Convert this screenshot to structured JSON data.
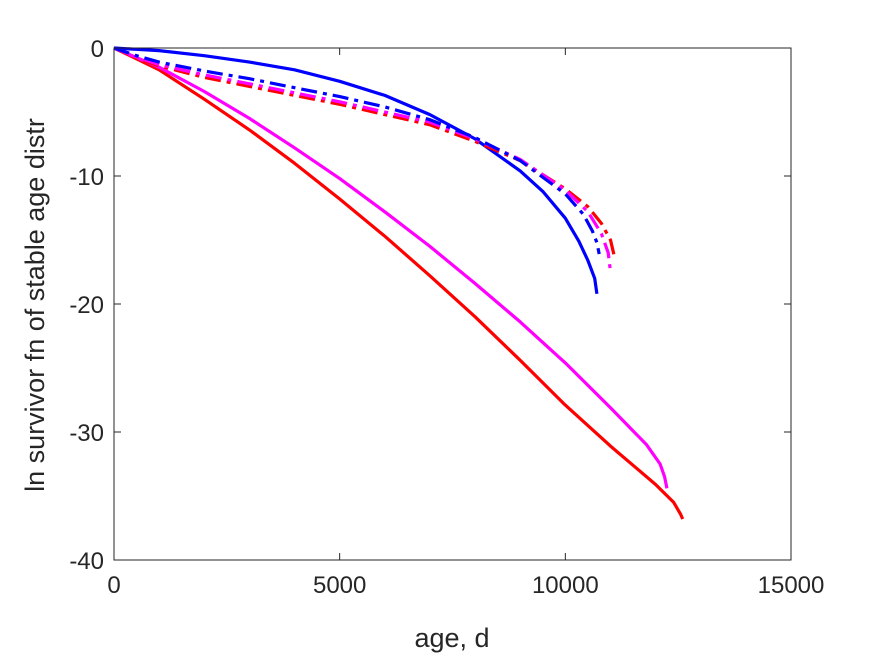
{
  "chart_data": {
    "type": "line",
    "title": "",
    "xlabel": "age, d",
    "ylabel": "ln survivor fn of stable age distr",
    "xlim": [
      0,
      15000
    ],
    "ylim": [
      -40,
      0
    ],
    "xticks": [
      0,
      5000,
      10000,
      15000
    ],
    "yticks": [
      0,
      -10,
      -20,
      -30,
      -40
    ],
    "xtick_labels": [
      "0",
      "5000",
      "10000",
      "15000"
    ],
    "ytick_labels": [
      "0",
      "-10",
      "-20",
      "-30",
      "-40"
    ],
    "grid": false,
    "legend": "none",
    "series": [
      {
        "color": "#ff0000",
        "style": "solid",
        "x": [
          0,
          1000,
          2000,
          3000,
          4000,
          5000,
          6000,
          7000,
          8000,
          9000,
          10000,
          11000,
          12000,
          12200,
          12400,
          12550,
          12600
        ],
        "y": [
          0,
          -1.7,
          -4.0,
          -6.4,
          -9.0,
          -11.8,
          -14.7,
          -17.8,
          -21.0,
          -24.4,
          -27.9,
          -31.1,
          -34.1,
          -34.8,
          -35.5,
          -36.4,
          -36.8
        ]
      },
      {
        "color": "#ff00ff",
        "style": "solid",
        "x": [
          0,
          1000,
          2000,
          3000,
          4000,
          5000,
          6000,
          7000,
          8000,
          9000,
          10000,
          11000,
          11800,
          12100,
          12200,
          12250
        ],
        "y": [
          0,
          -1.5,
          -3.4,
          -5.5,
          -7.8,
          -10.2,
          -12.8,
          -15.5,
          -18.4,
          -21.4,
          -24.6,
          -28.1,
          -31.0,
          -32.5,
          -33.5,
          -34.4
        ]
      },
      {
        "color": "#0000ff",
        "style": "solid",
        "x": [
          0,
          1000,
          2000,
          3000,
          4000,
          5000,
          6000,
          7000,
          8000,
          9000,
          9500,
          10000,
          10300,
          10500,
          10650,
          10700
        ],
        "y": [
          0,
          -0.2,
          -0.6,
          -1.1,
          -1.7,
          -2.6,
          -3.7,
          -5.2,
          -7.1,
          -9.6,
          -11.2,
          -13.3,
          -15.1,
          -16.6,
          -18.0,
          -19.2
        ]
      },
      {
        "color": "#ff0000",
        "style": "dashdot",
        "x": [
          0,
          500,
          1000,
          2000,
          3000,
          4000,
          5000,
          6000,
          7000,
          8000,
          9000,
          10000,
          10500,
          10800,
          11000,
          11100
        ],
        "y": [
          0,
          -0.8,
          -1.4,
          -2.3,
          -3.0,
          -3.7,
          -4.4,
          -5.2,
          -6.0,
          -7.3,
          -8.8,
          -11.0,
          -12.4,
          -13.7,
          -15.0,
          -16.5
        ]
      },
      {
        "color": "#ff00ff",
        "style": "dashdot",
        "x": [
          0,
          500,
          1000,
          2000,
          3000,
          4000,
          5000,
          6000,
          7000,
          8000,
          9000,
          10000,
          10500,
          10800,
          10950,
          11000
        ],
        "y": [
          0,
          -0.7,
          -1.3,
          -2.1,
          -2.8,
          -3.5,
          -4.2,
          -5.0,
          -5.8,
          -7.1,
          -8.7,
          -11.1,
          -12.8,
          -14.5,
          -16.0,
          -17.5
        ]
      },
      {
        "color": "#0000ff",
        "style": "dashdot",
        "x": [
          0,
          500,
          1000,
          2000,
          3000,
          4000,
          5000,
          6000,
          7000,
          8000,
          9000,
          10000,
          10400,
          10600,
          10700,
          10750
        ],
        "y": [
          0,
          -0.6,
          -1.1,
          -1.8,
          -2.4,
          -3.1,
          -3.8,
          -4.6,
          -5.6,
          -7.0,
          -8.8,
          -11.4,
          -13.0,
          -14.3,
          -15.2,
          -16.1
        ]
      }
    ]
  }
}
